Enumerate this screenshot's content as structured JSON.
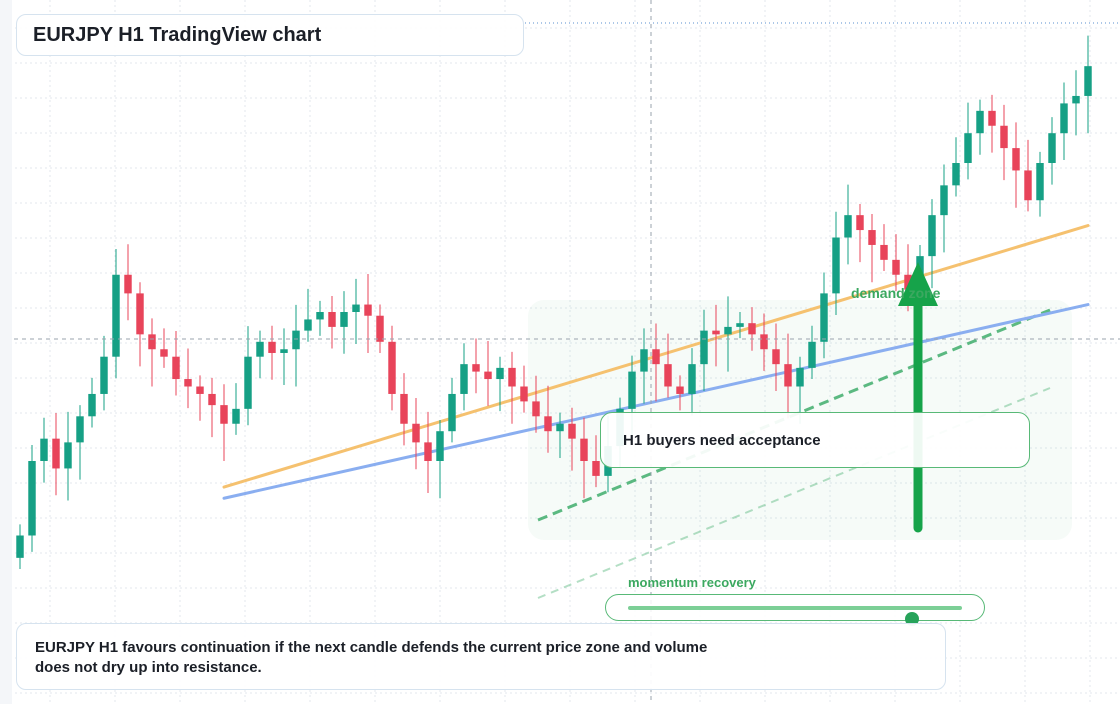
{
  "header": {
    "title": "EURJPY H1 TradingView chart"
  },
  "annotations": {
    "zone_label": "demand zone",
    "callout": "H1 buyers need acceptance",
    "momentum_label": "momentum recovery",
    "momentum_level": 0.85,
    "summary": "EURJPY H1 favours continuation if the next candle defends the current price zone and volume does not dry up into resistance."
  },
  "colors": {
    "bull": "#16a085",
    "bear": "#e8445a",
    "ma_fast": "#f5c16f",
    "ma_slow": "#8aaef0",
    "zone": "#27a35a",
    "grid": "#e3e7ee"
  },
  "chart_data": {
    "type": "candlestick",
    "symbol": "EURJPY",
    "timeframe": "H1",
    "candle_count": 90,
    "price_range": [
      0,
      100
    ],
    "closes": [
      10,
      30,
      36,
      28,
      35,
      42,
      48,
      58,
      80,
      75,
      64,
      60,
      58,
      52,
      50,
      48,
      45,
      40,
      44,
      58,
      62,
      59,
      60,
      65,
      68,
      70,
      66,
      70,
      72,
      69,
      62,
      48,
      40,
      35,
      30,
      38,
      48,
      56,
      54,
      52,
      55,
      50,
      46,
      42,
      38,
      40,
      36,
      30,
      26,
      34,
      44,
      54,
      60,
      56,
      50,
      48,
      56,
      65,
      64,
      66,
      67,
      64,
      60,
      56,
      50,
      55,
      62,
      75,
      90,
      96,
      92,
      88,
      84,
      80,
      76,
      85,
      96,
      104,
      110,
      118,
      124,
      120,
      114,
      108,
      100,
      110,
      118,
      126,
      128,
      136
    ],
    "moving_averages": [
      {
        "key": "fast",
        "start": 23,
        "end": 50
      },
      {
        "key": "slow",
        "start": 20,
        "end": 40
      }
    ],
    "demand_zone": {
      "from_index": 44,
      "to_index": 86,
      "level": 46
    }
  }
}
